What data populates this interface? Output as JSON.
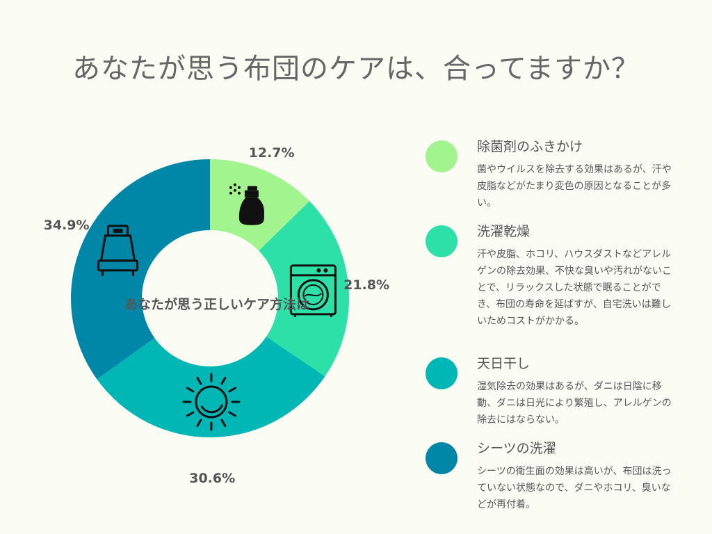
{
  "title": "あなたが思う布団のケアは、合ってますか？",
  "chart_data": {
    "type": "donut",
    "center_label": "あなたが思う正しいケア方法は",
    "slices": [
      {
        "label": "除菌剤のふきかけ",
        "value": 12.7,
        "display": "12.7%",
        "color": "#a2f48f",
        "icon": "spray-bottle-icon"
      },
      {
        "label": "洗濯乾燥",
        "value": 21.8,
        "display": "21.8%",
        "color": "#2de0a8",
        "icon": "washing-machine-icon"
      },
      {
        "label": "天日干し",
        "value": 30.6,
        "display": "30.6%",
        "color": "#00b7b6",
        "icon": "sun-icon"
      },
      {
        "label": "シーツの洗濯",
        "value": 34.9,
        "display": "34.9%",
        "color": "#0086a7",
        "icon": "bed-icon"
      }
    ]
  },
  "legend": [
    {
      "title": "除菌剤のふきかけ",
      "description": "菌やウイルスを除去する効果はあるが、汗や皮脂などがたまり変色の原因となることが多い。",
      "color": "#a2f48f"
    },
    {
      "title": "洗濯乾燥",
      "description": "汗や皮脂、ホコリ、ハウスダストなどアレルゲンの除去効果、不快な臭いや汚れがないことで、リラックスした状態で眠ることができ、布団の寿命を延ばすが、自宅洗いは難しいためコストがかかる。",
      "color": "#2de0a8"
    },
    {
      "title": "天日干し",
      "description": "湿気除去の効果はあるが、ダニは日陰に移動、ダニは日光により繁殖し、アレルゲンの除去にはならない。",
      "color": "#00b7b6"
    },
    {
      "title": "シーツの洗濯",
      "description": "シーツの衛生面の効果は高いが、布団は洗っていない状態なので、ダニやホコリ、臭いなどが再付着。",
      "color": "#0086a7"
    }
  ]
}
